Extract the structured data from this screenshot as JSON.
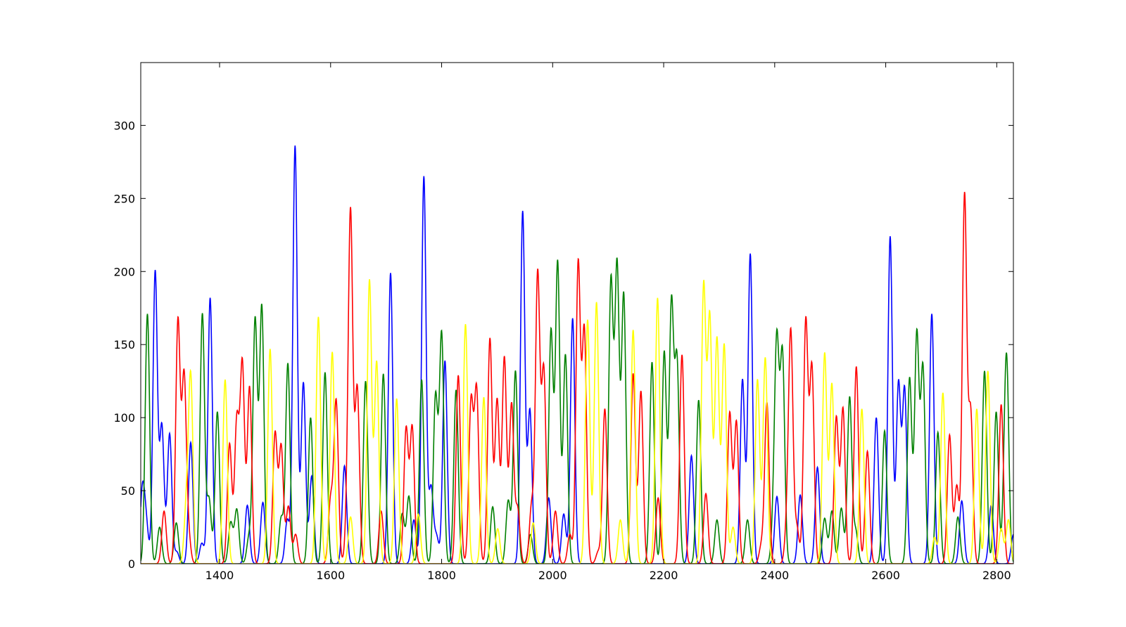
{
  "chart_data": {
    "type": "line",
    "title": "",
    "xlabel": "",
    "ylabel": "",
    "xlim": [
      1258,
      2830
    ],
    "ylim": [
      0,
      343
    ],
    "xticks": [
      1400,
      1600,
      1800,
      2000,
      2200,
      2400,
      2600,
      2800
    ],
    "yticks": [
      0,
      50,
      100,
      150,
      200,
      250,
      300
    ],
    "grid": false,
    "legend": "none",
    "peak_width": 4,
    "series": [
      {
        "color": "#0000ff",
        "peaks": [
          [
            1261,
            50
          ],
          [
            1268,
            25
          ],
          [
            1284,
            200
          ],
          [
            1296,
            94
          ],
          [
            1310,
            89
          ],
          [
            1323,
            8
          ],
          [
            1348,
            83
          ],
          [
            1368,
            14
          ],
          [
            1383,
            182
          ],
          [
            1450,
            40
          ],
          [
            1478,
            42
          ],
          [
            1522,
            30
          ],
          [
            1536,
            286
          ],
          [
            1551,
            124
          ],
          [
            1566,
            60
          ],
          [
            1625,
            67
          ],
          [
            1708,
            199
          ],
          [
            1750,
            30
          ],
          [
            1768,
            265
          ],
          [
            1781,
            52
          ],
          [
            1791,
            18
          ],
          [
            1806,
            139
          ],
          [
            1946,
            241
          ],
          [
            1959,
            105
          ],
          [
            1993,
            45
          ],
          [
            2020,
            34
          ],
          [
            2036,
            168
          ],
          [
            2250,
            74
          ],
          [
            2342,
            126
          ],
          [
            2356,
            212
          ],
          [
            2404,
            46
          ],
          [
            2446,
            47
          ],
          [
            2477,
            66
          ],
          [
            2583,
            100
          ],
          [
            2608,
            224
          ],
          [
            2623,
            123
          ],
          [
            2634,
            119
          ],
          [
            2683,
            171
          ],
          [
            2737,
            43
          ],
          [
            2790,
            40
          ],
          [
            2830,
            20
          ]
        ]
      },
      {
        "color": "#008000",
        "peaks": [
          [
            1270,
            171
          ],
          [
            1292,
            25
          ],
          [
            1322,
            28
          ],
          [
            1369,
            171
          ],
          [
            1381,
            44
          ],
          [
            1396,
            104
          ],
          [
            1420,
            28
          ],
          [
            1431,
            37
          ],
          [
            1453,
            18
          ],
          [
            1464,
            167
          ],
          [
            1476,
            176
          ],
          [
            1511,
            31
          ],
          [
            1523,
            137
          ],
          [
            1564,
            100
          ],
          [
            1590,
            131
          ],
          [
            1663,
            125
          ],
          [
            1695,
            130
          ],
          [
            1729,
            34
          ],
          [
            1741,
            46
          ],
          [
            1764,
            126
          ],
          [
            1789,
            114
          ],
          [
            1800,
            157
          ],
          [
            1826,
            119
          ],
          [
            1892,
            39
          ],
          [
            1920,
            43
          ],
          [
            1933,
            132
          ],
          [
            1960,
            20
          ],
          [
            1997,
            159
          ],
          [
            2009,
            206
          ],
          [
            2023,
            143
          ],
          [
            2105,
            193
          ],
          [
            2116,
            203
          ],
          [
            2128,
            184
          ],
          [
            2179,
            138
          ],
          [
            2201,
            145
          ],
          [
            2214,
            177
          ],
          [
            2224,
            137
          ],
          [
            2263,
            112
          ],
          [
            2296,
            30
          ],
          [
            2351,
            30
          ],
          [
            2398,
            26
          ],
          [
            2404,
            146
          ],
          [
            2414,
            142
          ],
          [
            2490,
            31
          ],
          [
            2503,
            36
          ],
          [
            2520,
            38
          ],
          [
            2535,
            114
          ],
          [
            2546,
            22
          ],
          [
            2598,
            91
          ],
          [
            2643,
            127
          ],
          [
            2656,
            157
          ],
          [
            2667,
            134
          ],
          [
            2694,
            90
          ],
          [
            2730,
            32
          ],
          [
            2778,
            132
          ],
          [
            2799,
            104
          ],
          [
            2814,
            30
          ],
          [
            2818,
            125
          ]
        ]
      },
      {
        "color": "#ff0000",
        "peaks": [
          [
            1300,
            36
          ],
          [
            1325,
            166
          ],
          [
            1336,
            127
          ],
          [
            1344,
            18
          ],
          [
            1418,
            82
          ],
          [
            1431,
            97
          ],
          [
            1441,
            136
          ],
          [
            1454,
            121
          ],
          [
            1500,
            89
          ],
          [
            1511,
            80
          ],
          [
            1524,
            39
          ],
          [
            1537,
            20
          ],
          [
            1600,
            43
          ],
          [
            1610,
            111
          ],
          [
            1630,
            24
          ],
          [
            1636,
            235
          ],
          [
            1648,
            120
          ],
          [
            1691,
            36
          ],
          [
            1736,
            92
          ],
          [
            1747,
            93
          ],
          [
            1830,
            129
          ],
          [
            1853,
            110
          ],
          [
            1863,
            118
          ],
          [
            1887,
            154
          ],
          [
            1900,
            112
          ],
          [
            1913,
            141
          ],
          [
            1926,
            109
          ],
          [
            1937,
            37
          ],
          [
            1962,
            39
          ],
          [
            1973,
            198
          ],
          [
            1984,
            132
          ],
          [
            2005,
            36
          ],
          [
            2031,
            20
          ],
          [
            2046,
            205
          ],
          [
            2057,
            159
          ],
          [
            2082,
            8
          ],
          [
            2094,
            106
          ],
          [
            2145,
            130
          ],
          [
            2159,
            118
          ],
          [
            2190,
            45
          ],
          [
            2233,
            143
          ],
          [
            2276,
            48
          ],
          [
            2319,
            103
          ],
          [
            2331,
            97
          ],
          [
            2376,
            12
          ],
          [
            2386,
            110
          ],
          [
            2422,
            22
          ],
          [
            2429,
            156
          ],
          [
            2440,
            24
          ],
          [
            2456,
            166
          ],
          [
            2467,
            134
          ],
          [
            2511,
            100
          ],
          [
            2523,
            106
          ],
          [
            2547,
            135
          ],
          [
            2567,
            77
          ],
          [
            2728,
            53
          ],
          [
            2715,
            88
          ],
          [
            2742,
            252
          ],
          [
            2753,
            103
          ],
          [
            2808,
            109
          ]
        ]
      },
      {
        "color": "#ffff00",
        "peaks": [
          [
            1340,
            36
          ],
          [
            1348,
            127
          ],
          [
            1410,
            126
          ],
          [
            1491,
            147
          ],
          [
            1578,
            169
          ],
          [
            1603,
            145
          ],
          [
            1636,
            32
          ],
          [
            1670,
            194
          ],
          [
            1683,
            138
          ],
          [
            1719,
            113
          ],
          [
            1758,
            34
          ],
          [
            1843,
            164
          ],
          [
            1876,
            114
          ],
          [
            1901,
            24
          ],
          [
            1965,
            28
          ],
          [
            2063,
            167
          ],
          [
            2079,
            179
          ],
          [
            2122,
            30
          ],
          [
            2145,
            160
          ],
          [
            2189,
            182
          ],
          [
            2272,
            190
          ],
          [
            2283,
            168
          ],
          [
            2296,
            154
          ],
          [
            2309,
            150
          ],
          [
            2325,
            25
          ],
          [
            2369,
            126
          ],
          [
            2383,
            141
          ],
          [
            2490,
            144
          ],
          [
            2503,
            123
          ],
          [
            2557,
            106
          ],
          [
            2688,
            18
          ],
          [
            2703,
            117
          ],
          [
            2764,
            106
          ],
          [
            2784,
            132
          ],
          [
            2808,
            24
          ],
          [
            2821,
            30
          ]
        ]
      }
    ]
  }
}
